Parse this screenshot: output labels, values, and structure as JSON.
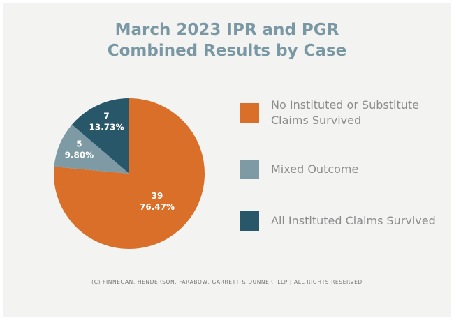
{
  "chart_data": {
    "type": "pie",
    "title": "March 2023 IPR and PGR Combined Results by Case",
    "categories": [
      "No Instituted or Substitute Claims Survived",
      "Mixed Outcome",
      "All Instituted Claims Survived"
    ],
    "values": [
      39,
      5,
      7
    ],
    "percentages": [
      76.47,
      9.8,
      13.73
    ],
    "percentage_labels": [
      "76.47%",
      "9.80%",
      "13.73%"
    ],
    "colors": [
      "#d96f28",
      "#7e9ba5",
      "#28576a"
    ],
    "footer": "(C) FINNEGAN, HENDERSON, FARABOW, GARRETT & DUNNER, LLP | ALL RIGHTS RESERVED"
  }
}
